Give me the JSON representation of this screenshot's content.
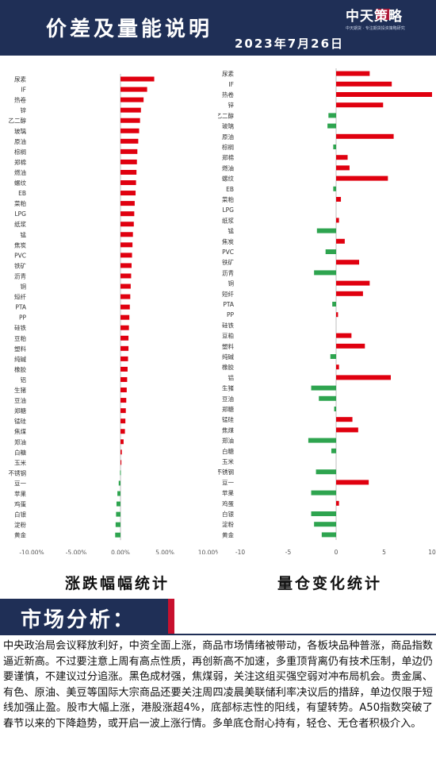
{
  "header": {
    "title": "价差及量能说明",
    "date": "2023年7月26日",
    "logo_text": "中天策略",
    "logo_sub": "中天期货 · 专注期货投资策略研究"
  },
  "colors": {
    "header_bg": "#1f2f56",
    "accent_red": "#c8102e",
    "bar_red": "#e0000f",
    "bar_green": "#2ea44f"
  },
  "captions": {
    "left": "涨跌幅幅统计",
    "right": "量仓变化统计"
  },
  "market": {
    "title": "市场分析：",
    "text": "中央政治局会议释放利好，中资全面上涨，商品市场情绪被带动，各板块品种普涨，商品指数逼近新高。不过要注意上周有高点性质，再创新高不加速，多重顶背离仍有技术压制，单边仍要谨慎，不建议过分追涨。黑色成材强，焦煤弱，关注这组买强空弱对冲布局机会。贵金属、有色、原油、美豆等国际大宗商品还要关注周四凌晨美联储利率决议后的措辞，单边仅限于短线加强止盈。股市大幅上涨，港股涨超4%，底部标志性的阳线，有望转势。A50指数突破了春节以来的下降趋势，或开启一波上涨行情。多单底仓耐心持有，轻仓、无仓者积极介入。"
  },
  "chart_data": [
    {
      "type": "bar",
      "orientation": "horizontal",
      "title": "涨跌幅幅统计",
      "categories": [
        "尿素",
        "IF",
        "热卷",
        "锌",
        "乙二醇",
        "玻璃",
        "原油",
        "棕榈",
        "郑棉",
        "燃油",
        "螺纹",
        "EB",
        "菜粕",
        "LPG",
        "纸浆",
        "锰",
        "焦炭",
        "PVC",
        "铁矿",
        "沥青",
        "铜",
        "短纤",
        "PTA",
        "PP",
        "硅铁",
        "豆粕",
        "塑料",
        "纯碱",
        "橡胶",
        "铝",
        "生猪",
        "豆油",
        "郑糖",
        "锰硅",
        "焦煤",
        "郑油",
        "白糖",
        "玉米",
        "不锈钢",
        "豆一",
        "苹果",
        "鸡蛋",
        "白银",
        "淀粉",
        "黄金"
      ],
      "values": [
        3.8,
        3.0,
        2.6,
        2.3,
        2.2,
        2.1,
        2.0,
        1.9,
        1.85,
        1.8,
        1.75,
        1.7,
        1.6,
        1.55,
        1.5,
        1.4,
        1.35,
        1.3,
        1.25,
        1.2,
        1.15,
        1.1,
        1.05,
        1.0,
        0.95,
        0.9,
        0.9,
        0.85,
        0.8,
        0.75,
        0.7,
        0.65,
        0.6,
        0.55,
        0.5,
        0.35,
        0.15,
        0.1,
        -0.05,
        -0.2,
        -0.35,
        -0.45,
        -0.5,
        -0.55,
        -0.6
      ],
      "xlim": [
        -10,
        10
      ],
      "xticks": [
        "-10.00%",
        "-5.00%",
        "0.00%",
        "5.00%",
        "10.00%"
      ],
      "tick_values": [
        -10,
        -5,
        0,
        5,
        10
      ]
    },
    {
      "type": "bar",
      "orientation": "horizontal",
      "title": "量仓变化统计",
      "categories": [
        "尿素",
        "IF",
        "热卷",
        "锌",
        "乙二醇",
        "玻璃",
        "原油",
        "棕榈",
        "郑棉",
        "燃油",
        "螺纹",
        "EB",
        "菜粕",
        "LPG",
        "纸浆",
        "锰",
        "焦炭",
        "PVC",
        "铁矿",
        "沥青",
        "铜",
        "短纤",
        "PTA",
        "PP",
        "硅铁",
        "豆粕",
        "塑料",
        "纯碱",
        "橡胶",
        "铝",
        "生猪",
        "豆油",
        "郑糖",
        "锰硅",
        "焦煤",
        "郑油",
        "白糖",
        "玉米",
        "不锈钢",
        "豆一",
        "苹果",
        "鸡蛋",
        "白银",
        "淀粉",
        "黄金"
      ],
      "values": [
        3.5,
        5.8,
        10.0,
        4.9,
        -0.8,
        -0.9,
        6.0,
        -0.3,
        1.2,
        1.4,
        5.4,
        -0.3,
        0.5,
        0.0,
        0.3,
        -2.0,
        0.9,
        -1.1,
        2.4,
        -2.3,
        3.5,
        2.8,
        -0.4,
        0.2,
        0.0,
        1.6,
        3.0,
        -0.6,
        0.3,
        5.7,
        -2.6,
        -1.8,
        -0.2,
        1.7,
        2.3,
        -2.9,
        -0.5,
        0.0,
        -2.1,
        3.4,
        -2.6,
        0.3,
        -2.6,
        -2.3,
        -1.5
      ],
      "xlim": [
        -10,
        10
      ],
      "xticks": [
        "-10",
        "-5",
        "0",
        "5",
        "10"
      ],
      "tick_values": [
        -10,
        -5,
        0,
        5,
        10
      ]
    }
  ]
}
